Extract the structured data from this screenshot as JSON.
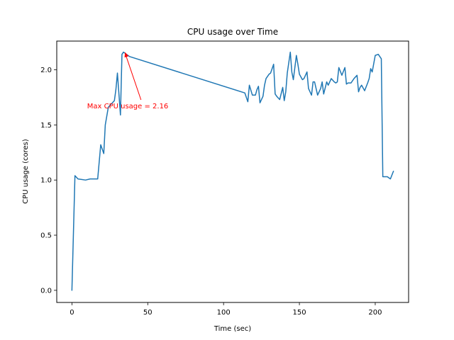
{
  "chart_data": {
    "type": "line",
    "title": "CPU usage over Time",
    "xlabel": "Time (sec)",
    "ylabel": "CPU usage (cores)",
    "xlim": [
      -10,
      222
    ],
    "ylim": [
      -0.11,
      2.26
    ],
    "xticks": [
      0,
      50,
      100,
      150,
      200
    ],
    "yticks": [
      0.0,
      0.5,
      1.0,
      1.5,
      2.0
    ],
    "xtick_labels": [
      "0",
      "50",
      "100",
      "150",
      "200"
    ],
    "ytick_labels": [
      "0.0",
      "0.5",
      "1.0",
      "1.5",
      "2.0"
    ],
    "grid": false,
    "line_color": "#1f77b4",
    "series": [
      {
        "x": [
          0,
          2,
          4,
          9,
          12,
          15,
          17,
          19,
          21,
          22,
          23,
          24,
          26,
          28,
          29,
          30,
          32,
          33,
          34,
          36,
          38,
          114,
          116,
          117,
          119,
          121,
          122,
          123,
          124,
          126,
          127,
          128,
          130,
          131,
          133,
          134,
          135,
          137,
          139,
          140,
          141,
          142,
          144,
          145,
          146,
          148,
          149,
          150,
          152,
          153,
          155,
          156,
          158,
          159,
          160,
          162,
          164,
          165,
          166,
          168,
          169,
          171,
          173,
          174,
          175,
          176,
          178,
          180,
          181,
          182,
          183,
          184,
          186,
          188,
          189,
          190,
          191,
          193,
          195,
          196,
          197,
          198,
          200,
          202,
          204,
          205,
          206,
          208,
          210,
          212
        ],
        "y": [
          0.0,
          1.04,
          1.01,
          1.0,
          1.01,
          1.01,
          1.01,
          1.32,
          1.24,
          1.5,
          1.58,
          1.66,
          1.69,
          1.72,
          1.82,
          1.97,
          1.59,
          2.14,
          2.16,
          2.14,
          2.12,
          1.79,
          1.71,
          1.86,
          1.77,
          1.77,
          1.82,
          1.85,
          1.7,
          1.76,
          1.86,
          1.92,
          1.96,
          1.97,
          2.05,
          1.78,
          1.76,
          1.73,
          1.84,
          1.72,
          1.8,
          1.97,
          2.16,
          1.98,
          1.91,
          2.13,
          2.05,
          1.96,
          1.91,
          1.92,
          1.98,
          1.83,
          1.77,
          1.89,
          1.89,
          1.77,
          1.83,
          1.89,
          1.78,
          1.89,
          1.86,
          1.92,
          1.89,
          1.88,
          1.89,
          2.02,
          1.95,
          2.02,
          1.87,
          1.88,
          1.88,
          1.88,
          1.92,
          1.95,
          1.8,
          1.84,
          1.86,
          1.81,
          1.88,
          1.92,
          2.01,
          1.98,
          2.13,
          2.14,
          2.1,
          1.03,
          1.03,
          1.03,
          1.01,
          1.08
        ]
      }
    ],
    "annotation": {
      "text": "Max CPU usage = 2.16",
      "point": [
        35,
        2.16
      ],
      "text_pos": [
        10,
        1.65
      ],
      "color": "#ff0000"
    }
  }
}
